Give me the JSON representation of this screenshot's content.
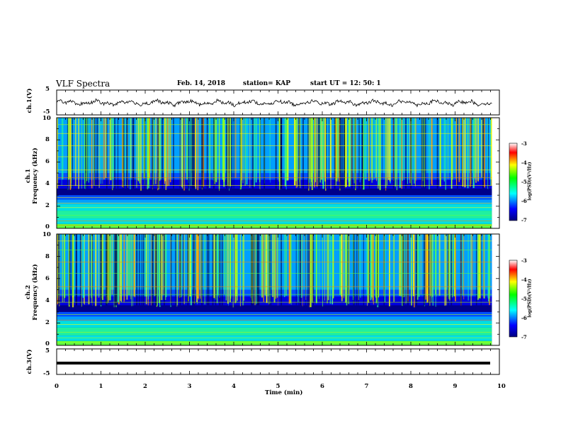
{
  "header": {
    "title": "VLF Spectra",
    "date": "Feb. 14, 2018",
    "station": "station= KAP",
    "start": "start  UT  =   12: 50: 1"
  },
  "chart_data": [
    {
      "type": "line",
      "panel": "ch1-waveform",
      "ylabel": "ch.1(V)",
      "yticks": [
        "5",
        "-5"
      ],
      "ylim": [
        -5,
        5
      ],
      "xlim": [
        0,
        10
      ],
      "note": "voltage trace oscillating around 0 V"
    },
    {
      "type": "heatmap",
      "panel": "ch1-spectrogram",
      "ylabel_top": "ch.1",
      "ylabel": "Frequency  (kHz)",
      "yticks": [
        "0",
        "2",
        "4",
        "6",
        "8",
        "10"
      ],
      "ylim": [
        0,
        10
      ],
      "xlim": [
        0,
        10
      ],
      "colorbar": {
        "label": "log(PSD)(V²/Hz)",
        "ticks": [
          "-3",
          "-4",
          "-5",
          "-6",
          "-7"
        ],
        "range": [
          -7,
          -3
        ]
      }
    },
    {
      "type": "heatmap",
      "panel": "ch2-spectrogram",
      "ylabel_top": "ch.2",
      "ylabel": "Frequency  (kHz)",
      "yticks": [
        "0",
        "2",
        "4",
        "6",
        "8",
        "10"
      ],
      "ylim": [
        0,
        10
      ],
      "xlim": [
        0,
        10
      ],
      "colorbar": {
        "label": "log(PSD)(V²/Hz)",
        "ticks": [
          "-3",
          "-4",
          "-5",
          "-6",
          "-7"
        ],
        "range": [
          -7,
          -3
        ]
      }
    },
    {
      "type": "line",
      "panel": "ch3-waveform",
      "ylabel": "ch.3(V)",
      "yticks": [
        "5",
        "-5"
      ],
      "ylim": [
        -5,
        5
      ],
      "xlim": [
        0,
        10
      ],
      "note": "flat trace near 0 V"
    }
  ],
  "x_axis": {
    "label": "Time  (min)",
    "ticks": [
      "0",
      "1",
      "2",
      "3",
      "4",
      "5",
      "6",
      "7",
      "8",
      "9",
      "10"
    ]
  },
  "colors": {
    "frame": "#000000",
    "trace": "#000000"
  }
}
